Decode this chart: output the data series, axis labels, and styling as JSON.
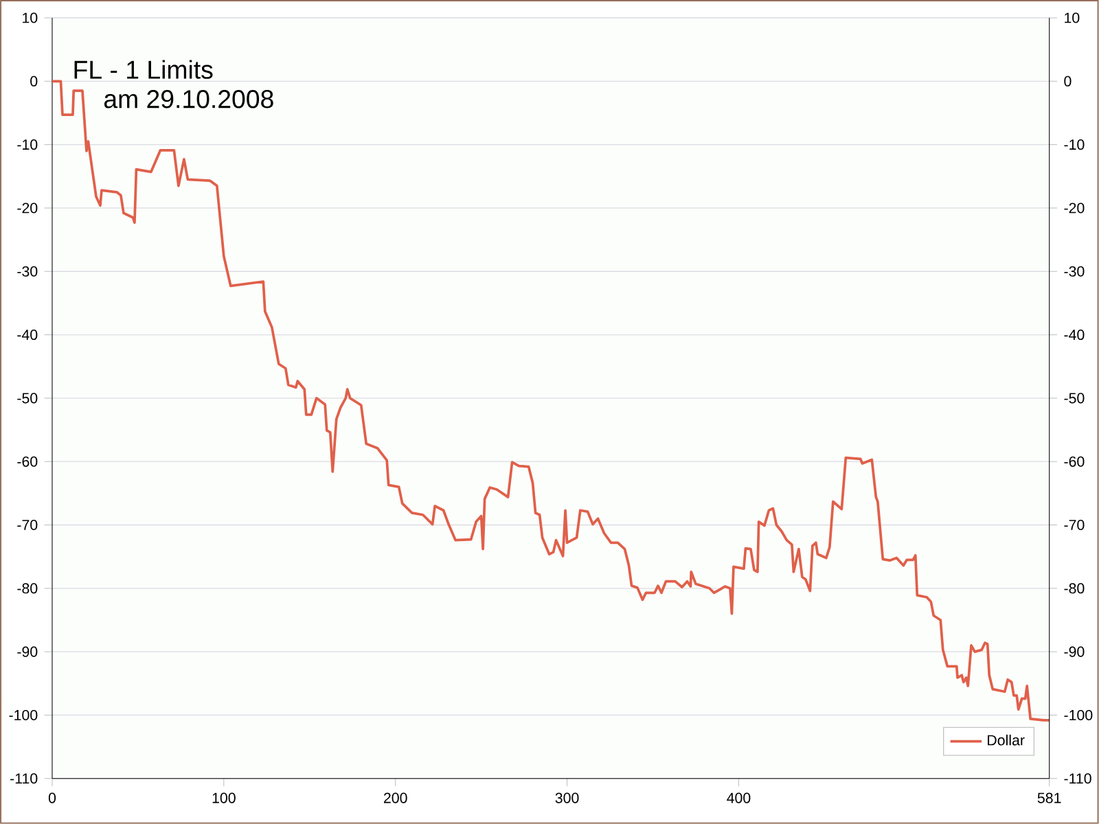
{
  "chart_data": {
    "type": "line",
    "title": "FL  - 1 Limits",
    "subtitle": "am 29.10.2008",
    "x": [
      0,
      3,
      5,
      6,
      12,
      12.5,
      17.6,
      20,
      21,
      25.6,
      28,
      28.8,
      37.6,
      40,
      41.6,
      47,
      48,
      49,
      57.6,
      63,
      71,
      73.6,
      76.8,
      79,
      92,
      96,
      100,
      104,
      123,
      124,
      128,
      132,
      136,
      137.6,
      142,
      143,
      147,
      148,
      151,
      154,
      159,
      160,
      162,
      163.4,
      165.6,
      168,
      171,
      172,
      173.6,
      180,
      183,
      189.6,
      195,
      196,
      202,
      204,
      209.6,
      216,
      221.6,
      223,
      228,
      231,
      235,
      244,
      247,
      250,
      251,
      252,
      255,
      259,
      265.6,
      268,
      272,
      277.6,
      280,
      281.6,
      284,
      285.6,
      289.6,
      292,
      293.6,
      296,
      297.6,
      299,
      300,
      305.6,
      307.7,
      312,
      315,
      318,
      321.6,
      325.6,
      329.6,
      333.6,
      336,
      337.6,
      341,
      344,
      346,
      351,
      353,
      355,
      357.6,
      363,
      367,
      370,
      372,
      372.3,
      375,
      383,
      385.6,
      389,
      392,
      395,
      396,
      397,
      403,
      404,
      407,
      409,
      411,
      411.7,
      415,
      417.6,
      420,
      422,
      425,
      428,
      431,
      432,
      435,
      437,
      439,
      441.6,
      443,
      445,
      446,
      451,
      453,
      455,
      460,
      462.4,
      471,
      472,
      477.6,
      480,
      481,
      484,
      488,
      492,
      496,
      498,
      501.6,
      503,
      504,
      509.6,
      512,
      513.6,
      517.6,
      519,
      521.6,
      527,
      527.5,
      530,
      531,
      532.6,
      533.6,
      535.5,
      537.6,
      541.6,
      543.5,
      545,
      546,
      548,
      555,
      556.8,
      559,
      560.3,
      562,
      563,
      565,
      567,
      568,
      570,
      577.6,
      581
    ],
    "series": [
      {
        "name": "Dollar",
        "color": "#e0604a",
        "values": [
          0,
          0,
          0,
          -5.3,
          -5.3,
          -1.5,
          -1.5,
          -11,
          -9.5,
          -18.2,
          -19.6,
          -17.2,
          -17.5,
          -18,
          -20.8,
          -21.5,
          -22.3,
          -13.9,
          -14.3,
          -10.9,
          -10.9,
          -16.5,
          -12.3,
          -15.5,
          -15.7,
          -16.5,
          -27.6,
          -32.3,
          -31.6,
          -36.3,
          -38.8,
          -44.6,
          -45.3,
          -47.9,
          -48.3,
          -47.3,
          -48.6,
          -52.6,
          -52.6,
          -50,
          -51,
          -55.1,
          -55.4,
          -61.6,
          -53.3,
          -51.5,
          -50,
          -48.6,
          -50,
          -51.1,
          -57.2,
          -57.9,
          -59.8,
          -63.7,
          -64,
          -66.6,
          -68.1,
          -68.4,
          -69.9,
          -67,
          -67.7,
          -69.9,
          -72.4,
          -72.3,
          -69.5,
          -68.6,
          -73.8,
          -65.9,
          -64.1,
          -64.4,
          -65.6,
          -60.1,
          -60.7,
          -60.8,
          -63.4,
          -68.1,
          -68.4,
          -72,
          -74.6,
          -74.3,
          -72.4,
          -73.9,
          -74.9,
          -67.7,
          -72.8,
          -72,
          -67.7,
          -67.9,
          -69.9,
          -69,
          -71.3,
          -72.8,
          -72.8,
          -73.8,
          -76.4,
          -79.6,
          -79.9,
          -81.8,
          -80.7,
          -80.7,
          -79.6,
          -80.7,
          -78.9,
          -78.9,
          -79.8,
          -78.9,
          -79.7,
          -77.4,
          -79.3,
          -80,
          -80.7,
          -80.2,
          -79.7,
          -80,
          -84,
          -76.6,
          -76.9,
          -73.7,
          -73.8,
          -77.1,
          -77.4,
          -69.5,
          -70.1,
          -67.7,
          -67.4,
          -70,
          -71,
          -72.4,
          -73.1,
          -77.4,
          -73.8,
          -78.2,
          -78.6,
          -80.4,
          -73.3,
          -72.8,
          -74.6,
          -75.2,
          -73.5,
          -66.3,
          -67.5,
          -59.4,
          -59.6,
          -60.3,
          -59.7,
          -65.6,
          -66.3,
          -75.4,
          -75.6,
          -75.2,
          -76.4,
          -75.5,
          -75.5,
          -74.8,
          -81.1,
          -81.4,
          -82.1,
          -84.3,
          -85,
          -89.7,
          -92.3,
          -92.3,
          -94.1,
          -93.7,
          -94.8,
          -94.1,
          -95.4,
          -89,
          -90,
          -89.7,
          -88.6,
          -88.8,
          -93.7,
          -95.9,
          -96.3,
          -94.4,
          -94.8,
          -96.9,
          -96.9,
          -99.1,
          -97.4,
          -97.4,
          -95.4,
          -100.6,
          -100.8,
          -100.8
        ]
      }
    ],
    "xlim": [
      0,
      581
    ],
    "xticks": [
      0,
      100,
      200,
      300,
      400,
      581
    ],
    "ylim": [
      -110,
      10
    ],
    "yticks": [
      -110,
      -100,
      -90,
      -80,
      -70,
      -60,
      -50,
      -40,
      -30,
      -20,
      -10,
      0,
      10
    ],
    "y2lim": [
      -110,
      10
    ],
    "y2ticks": [
      -110,
      -100,
      -90,
      -80,
      -70,
      -60,
      -50,
      -40,
      -30,
      -20,
      -10,
      0,
      10
    ],
    "grid": "y",
    "legend": "bottom right"
  }
}
